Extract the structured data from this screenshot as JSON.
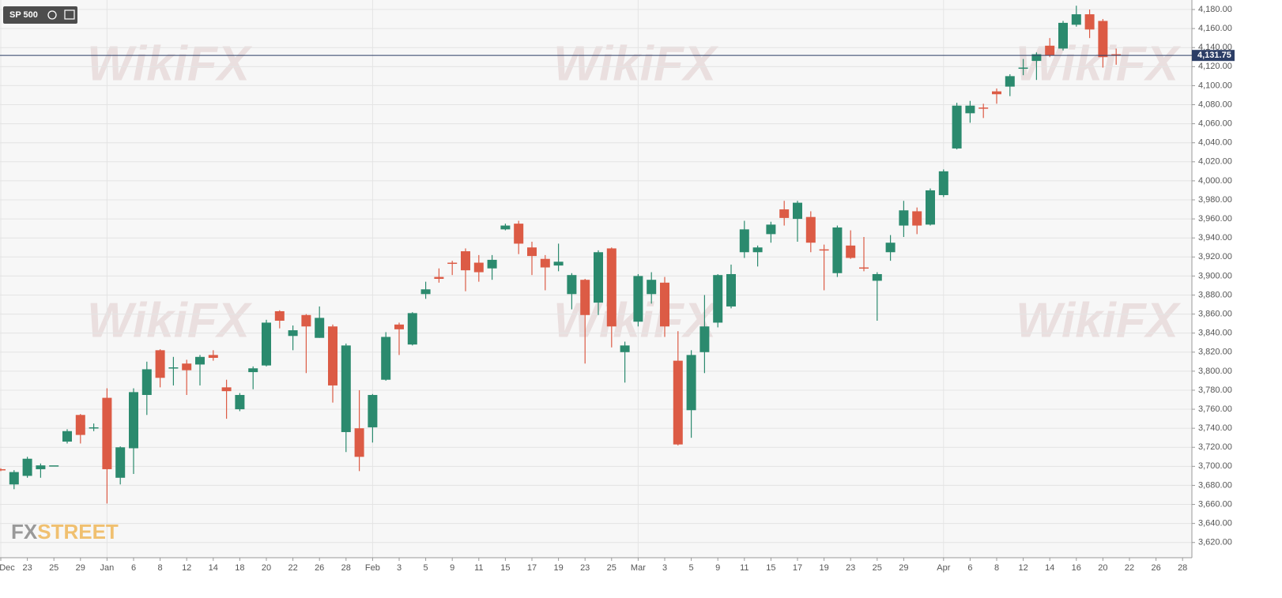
{
  "chart_data": {
    "type": "candlestick",
    "symbol": "SP 500",
    "watermark": "WikiFX",
    "logo_prefix": "FX",
    "logo_suffix": "STREET",
    "last_price": {
      "value": 4131.75,
      "label": "4,131.75"
    },
    "up_color": "#2b8a6e",
    "down_color": "#dc5b45",
    "grid": true,
    "categories": [
      "Dec",
      null,
      "23",
      null,
      "25",
      null,
      "29",
      null,
      "Jan",
      null,
      "6",
      null,
      "8",
      null,
      "12",
      null,
      "14",
      null,
      "18",
      null,
      "20",
      null,
      "22",
      null,
      "26",
      null,
      "28",
      null,
      "Feb",
      null,
      "3",
      null,
      "5",
      null,
      "9",
      null,
      "11",
      null,
      "15",
      null,
      "17",
      null,
      "19",
      null,
      "23",
      null,
      "25",
      null,
      "Mar",
      null,
      "3",
      null,
      "5",
      null,
      "9",
      null,
      "11",
      null,
      "15",
      null,
      "17",
      null,
      "19",
      null,
      "23",
      null,
      "25",
      null,
      "29",
      null,
      null,
      "Apr",
      null,
      "6",
      null,
      "8",
      null,
      "12",
      null,
      "14",
      null,
      "16",
      null,
      "20",
      null,
      "22",
      null,
      "26",
      null,
      "28"
    ],
    "open": [
      3697,
      3681,
      3690,
      3697,
      3701,
      3726,
      3754,
      3741,
      3772,
      3688,
      3719,
      3775,
      3822,
      3803,
      3808,
      3807,
      3817,
      3783,
      3760,
      3799,
      3806,
      3863,
      3837,
      3859,
      3835,
      3847,
      3736,
      3740,
      3741,
      3791,
      3849,
      3828,
      3881,
      3899,
      3914,
      3926,
      3914,
      3908,
      3949,
      3955,
      3930,
      3918,
      3911,
      3881,
      3896,
      3872,
      3929,
      3820,
      3852,
      3881,
      3893,
      3811,
      3759,
      3820,
      3851,
      3868,
      3925,
      3925,
      3944,
      3970,
      3960,
      3962,
      3928,
      3903,
      3932,
      3909,
      3895,
      3925,
      3953,
      3968,
      3954,
      3985,
      4034,
      4071,
      4077,
      4094,
      4099,
      4119,
      4126,
      4142,
      4139,
      4164,
      4175,
      4168,
      4133,
      null,
      null,
      null,
      null,
      null
    ],
    "high": [
      3698,
      3696,
      3710,
      3703,
      3701,
      3739,
      3755,
      3745,
      3782,
      3721,
      3782,
      3810,
      3823,
      3815,
      3812,
      3817,
      3822,
      3791,
      3777,
      3805,
      3854,
      3864,
      3848,
      3860,
      3868,
      3849,
      3829,
      3780,
      3776,
      3841,
      3851,
      3862,
      3894,
      3908,
      3916,
      3929,
      3922,
      3922,
      3955,
      3958,
      3936,
      3922,
      3934,
      3903,
      3897,
      3927,
      3930,
      3831,
      3902,
      3904,
      3899,
      3842,
      3822,
      3880,
      3902,
      3912,
      3958,
      3932,
      3957,
      3979,
      3979,
      3968,
      3933,
      3953,
      3948,
      3941,
      3904,
      3943,
      3979,
      3972,
      3992,
      4012,
      4082,
      4084,
      4081,
      4097,
      4112,
      4128,
      4135,
      4150,
      4168,
      4184,
      4180,
      4170,
      4139,
      null,
      null,
      null,
      null,
      null
    ],
    "low": [
      3695,
      3676,
      3688,
      3688,
      3701,
      3724,
      3724,
      3737,
      3661,
      3681,
      3692,
      3754,
      3783,
      3785,
      3775,
      3785,
      3811,
      3750,
      3758,
      3781,
      3805,
      3845,
      3822,
      3798,
      3835,
      3767,
      3715,
      3695,
      3725,
      3790,
      3817,
      3827,
      3876,
      3893,
      3901,
      3884,
      3894,
      3896,
      3948,
      3923,
      3901,
      3885,
      3905,
      3865,
      3808,
      3859,
      3825,
      3788,
      3847,
      3871,
      3836,
      3722,
      3730,
      3798,
      3846,
      3866,
      3919,
      3910,
      3935,
      3953,
      3936,
      3925,
      3885,
      3899,
      3918,
      3905,
      3853,
      3916,
      3941,
      3944,
      3953,
      3983,
      4033,
      4061,
      4066,
      4081,
      4089,
      4111,
      4106,
      4130,
      4137,
      4162,
      4150,
      4119,
      4122,
      null,
      null,
      null,
      null,
      null
    ],
    "close": [
      3696,
      3694,
      3708,
      3701,
      3701,
      3737,
      3733,
      3741,
      3697,
      3720,
      3778,
      3802,
      3793,
      3804,
      3801,
      3815,
      3814,
      3779,
      3775,
      3803,
      3851,
      3853,
      3843,
      3847,
      3856,
      3785,
      3827,
      3710,
      3775,
      3836,
      3844,
      3861,
      3886,
      3897,
      3913,
      3906,
      3904,
      3917,
      3953,
      3934,
      3921,
      3909,
      3915,
      3901,
      3859,
      3925,
      3847,
      3827,
      3900,
      3896,
      3847,
      3723,
      3817,
      3847,
      3901,
      3902,
      3949,
      3930,
      3954,
      3961,
      3977,
      3935,
      3927,
      3951,
      3919,
      3908,
      3902,
      3935,
      3969,
      3953,
      3990,
      4010,
      4079,
      4079,
      4076,
      4091,
      4110,
      4119,
      4133,
      4132,
      4166,
      4175,
      4159,
      4130,
      4132,
      null,
      null,
      null,
      null,
      null
    ],
    "ylim": [
      3604,
      4190
    ],
    "yticks": [
      {
        "value": 3620,
        "label": "3,620.00"
      },
      {
        "value": 3640,
        "label": "3,640.00"
      },
      {
        "value": 3660,
        "label": "3,660.00"
      },
      {
        "value": 3680,
        "label": "3,680.00"
      },
      {
        "value": 3700,
        "label": "3,700.00"
      },
      {
        "value": 3720,
        "label": "3,720.00"
      },
      {
        "value": 3740,
        "label": "3,740.00"
      },
      {
        "value": 3760,
        "label": "3,760.00"
      },
      {
        "value": 3780,
        "label": "3,780.00"
      },
      {
        "value": 3800,
        "label": "3,800.00"
      },
      {
        "value": 3820,
        "label": "3,820.00"
      },
      {
        "value": 3840,
        "label": "3,840.00"
      },
      {
        "value": 3860,
        "label": "3,860.00"
      },
      {
        "value": 3880,
        "label": "3,880.00"
      },
      {
        "value": 3900,
        "label": "3,900.00"
      },
      {
        "value": 3920,
        "label": "3,920.00"
      },
      {
        "value": 3940,
        "label": "3,940.00"
      },
      {
        "value": 3960,
        "label": "3,960.00"
      },
      {
        "value": 3980,
        "label": "3,980.00"
      },
      {
        "value": 4000,
        "label": "4,000.00"
      },
      {
        "value": 4020,
        "label": "4,020.00"
      },
      {
        "value": 4040,
        "label": "4,040.00"
      },
      {
        "value": 4060,
        "label": "4,060.00"
      },
      {
        "value": 4080,
        "label": "4,080.00"
      },
      {
        "value": 4100,
        "label": "4,100.00"
      },
      {
        "value": 4120,
        "label": "4,120.00"
      },
      {
        "value": 4140,
        "label": "4,140.00"
      },
      {
        "value": 4160,
        "label": "4,160.00"
      },
      {
        "value": 4180,
        "label": "4,180.00"
      }
    ]
  }
}
